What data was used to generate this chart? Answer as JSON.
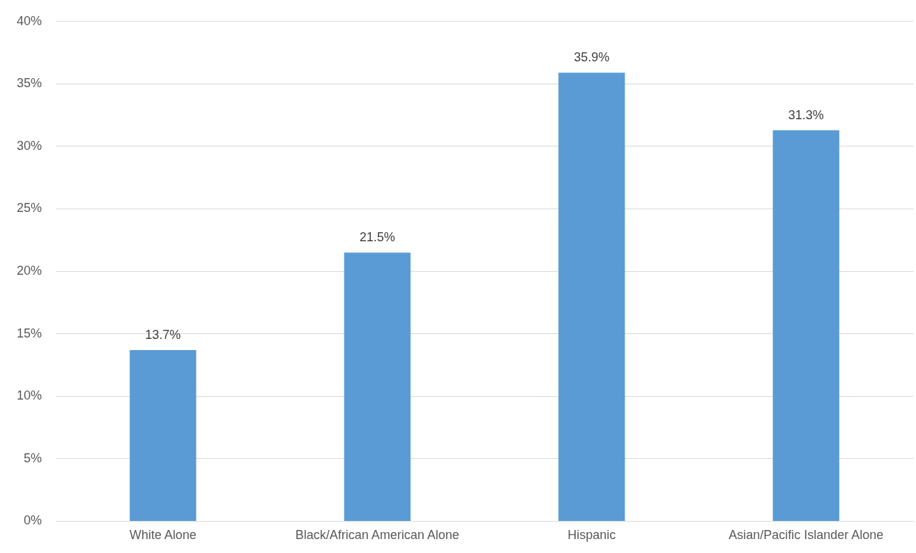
{
  "chart_data": {
    "type": "bar",
    "categories": [
      "White Alone",
      "Black/African American Alone",
      "Hispanic",
      "Asian/Pacific Islander Alone"
    ],
    "values": [
      13.7,
      21.5,
      35.9,
      31.3
    ],
    "color": "#5b9bd5",
    "value_labels": [
      "13.7%",
      "21.5%",
      "35.9%",
      "31.3%"
    ],
    "ylim": [
      0,
      40
    ],
    "yticks": [
      {
        "value": 0,
        "label": "0%"
      },
      {
        "value": 5,
        "label": "5%"
      },
      {
        "value": 10,
        "label": "10%"
      },
      {
        "value": 15,
        "label": "15%"
      },
      {
        "value": 20,
        "label": "20%"
      },
      {
        "value": 25,
        "label": "25%"
      },
      {
        "value": 30,
        "label": "30%"
      },
      {
        "value": 35,
        "label": "35%"
      },
      {
        "value": 40,
        "label": "40%"
      }
    ],
    "grid": "y"
  }
}
